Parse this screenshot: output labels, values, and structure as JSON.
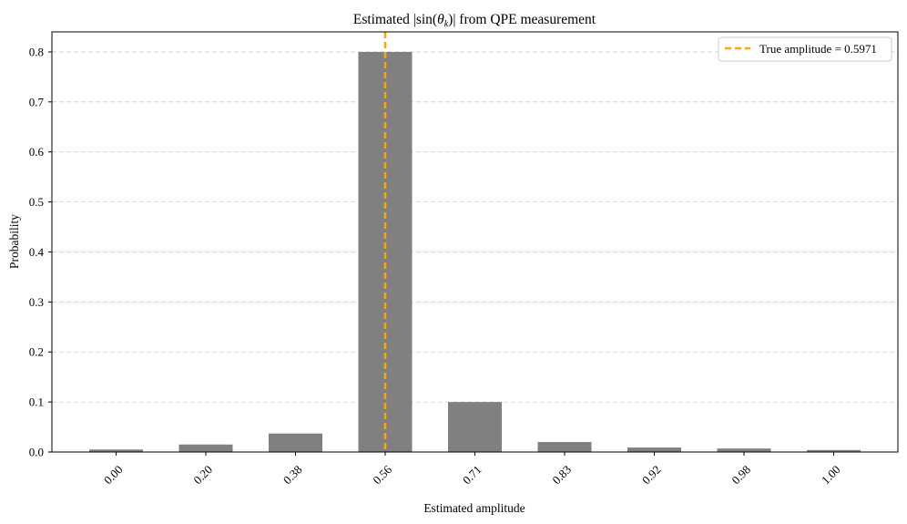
{
  "chart_data": {
    "type": "bar",
    "title_parts": {
      "prefix": "Estimated |sin(",
      "theta": "θ",
      "theta_sub": "k",
      "suffix": ")| from QPE measurement"
    },
    "xlabel": "Estimated amplitude",
    "ylabel": "Probability",
    "categories": [
      "0.00",
      "0.20",
      "0.38",
      "0.56",
      "0.71",
      "0.83",
      "0.92",
      "0.98",
      "1.00"
    ],
    "values": [
      0.005,
      0.015,
      0.037,
      0.8,
      0.1,
      0.02,
      0.009,
      0.007,
      0.004
    ],
    "ylim": [
      0,
      0.84
    ],
    "yticks": [
      "0.0",
      "0.1",
      "0.2",
      "0.3",
      "0.4",
      "0.5",
      "0.6",
      "0.7",
      "0.8"
    ],
    "grid": "y-dashed",
    "bar_color": "#808080",
    "reference_line": {
      "label": "True amplitude = 0.5971",
      "category_index": 3,
      "color": "#ffa500",
      "style": "dashed"
    },
    "legend_position": "top-right"
  }
}
